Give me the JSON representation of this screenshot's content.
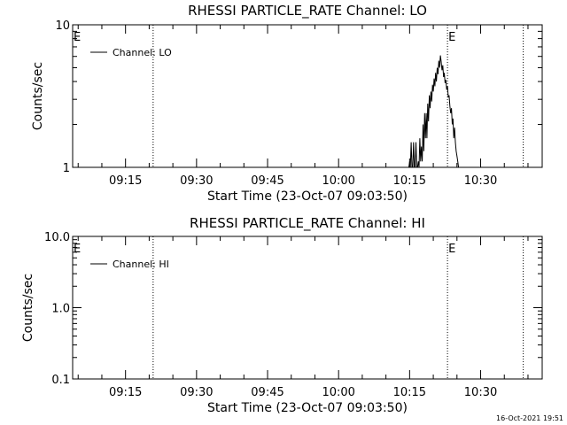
{
  "footer_timestamp": "16-Oct-2021 19:51",
  "chart_data": [
    {
      "type": "line",
      "title": "RHESSI PARTICLE_RATE Channel: LO",
      "xlabel": "Start Time (23-Oct-07 09:03:50)",
      "ylabel": "Counts/sec",
      "yscale": "log",
      "ylim": [
        1,
        10
      ],
      "y_ticks": [
        {
          "value": 1,
          "label": "1"
        },
        {
          "value": 10,
          "label": "10"
        }
      ],
      "xlim": [
        "09:03:50",
        "10:43:00"
      ],
      "x_ticks": [
        "09:15",
        "09:30",
        "09:45",
        "10:00",
        "10:15",
        "10:30"
      ],
      "legend": {
        "position": "top-left",
        "entries": [
          "Channel: LO"
        ]
      },
      "markers": [
        {
          "label": "E",
          "time": "09:03:50",
          "style": "none"
        },
        {
          "label": "",
          "time": "09:20:50",
          "style": "dotted"
        },
        {
          "label": "E",
          "time": "10:23:00",
          "style": "dotted"
        },
        {
          "label": "",
          "time": "10:39:00",
          "style": "dotted"
        }
      ],
      "series": [
        {
          "name": "Channel: LO",
          "x": [
            "10:14:50",
            "10:15:00",
            "10:15:10",
            "10:15:20",
            "10:15:30",
            "10:15:40",
            "10:15:50",
            "10:16:00",
            "10:16:10",
            "10:16:20",
            "10:16:30",
            "10:16:40",
            "10:16:50",
            "10:17:00",
            "10:17:10",
            "10:17:20",
            "10:17:30",
            "10:17:40",
            "10:17:50",
            "10:18:00",
            "10:18:10",
            "10:18:20",
            "10:18:30",
            "10:18:40",
            "10:18:50",
            "10:19:00",
            "10:19:10",
            "10:19:20",
            "10:19:30",
            "10:19:40",
            "10:19:50",
            "10:20:00",
            "10:20:10",
            "10:20:20",
            "10:20:30",
            "10:20:40",
            "10:20:50",
            "10:21:00",
            "10:21:10",
            "10:21:20",
            "10:21:30",
            "10:21:40",
            "10:21:50",
            "10:22:00",
            "10:22:10",
            "10:22:20",
            "10:22:30",
            "10:22:40",
            "10:22:50",
            "10:23:00",
            "10:23:10",
            "10:23:20",
            "10:23:30",
            "10:23:40",
            "10:23:50",
            "10:24:00",
            "10:24:10",
            "10:24:20",
            "10:24:30",
            "10:24:40",
            "10:24:50",
            "10:25:00",
            "10:25:10",
            "10:25:20",
            "10:25:30"
          ],
          "y": [
            1,
            1.1,
            1,
            1.5,
            1,
            1,
            1.5,
            1,
            1,
            1.5,
            1,
            1,
            1.1,
            1,
            1.6,
            1.1,
            1.4,
            1.1,
            2.0,
            1.3,
            2.4,
            1.6,
            2.4,
            1.6,
            2.8,
            2.1,
            3.2,
            2.6,
            3.4,
            2.9,
            3.8,
            3.4,
            4.2,
            3.7,
            4.6,
            4.0,
            5.0,
            4.5,
            5.6,
            5.0,
            6.1,
            5.5,
            4.8,
            5.2,
            4.3,
            4.6,
            3.9,
            4.1,
            3.5,
            3.7,
            3.1,
            3.2,
            2.7,
            2.4,
            2.6,
            2.0,
            2.2,
            1.6,
            1.9,
            1.5,
            1.3,
            1.2,
            1.1,
            1.0,
            1.0
          ]
        }
      ]
    },
    {
      "type": "line",
      "title": "RHESSI PARTICLE_RATE Channel: HI",
      "xlabel": "Start Time (23-Oct-07 09:03:50)",
      "ylabel": "Counts/sec",
      "yscale": "log",
      "ylim": [
        0.1,
        10
      ],
      "y_ticks": [
        {
          "value": 0.1,
          "label": "0.1"
        },
        {
          "value": 1,
          "label": "1.0"
        },
        {
          "value": 10,
          "label": "10.0"
        }
      ],
      "xlim": [
        "09:03:50",
        "10:43:00"
      ],
      "x_ticks": [
        "09:15",
        "09:30",
        "09:45",
        "10:00",
        "10:15",
        "10:30"
      ],
      "legend": {
        "position": "top-left",
        "entries": [
          "Channel: HI"
        ]
      },
      "markers": [
        {
          "label": "E",
          "time": "09:03:50",
          "style": "none"
        },
        {
          "label": "",
          "time": "09:20:50",
          "style": "dotted"
        },
        {
          "label": "E",
          "time": "10:23:00",
          "style": "dotted"
        },
        {
          "label": "",
          "time": "10:39:00",
          "style": "dotted"
        }
      ],
      "series": [
        {
          "name": "Channel: HI",
          "x": [],
          "y": []
        }
      ]
    }
  ]
}
